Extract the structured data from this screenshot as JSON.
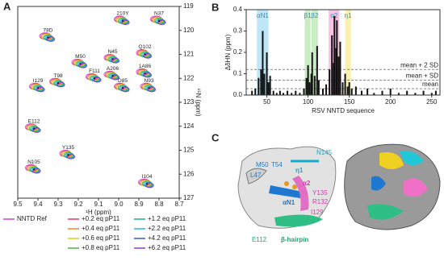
{
  "panel_labels": [
    "A",
    "B",
    "C"
  ],
  "chart_data": [
    {
      "type": "scatter",
      "x_label": "¹H (ppm)",
      "y_label": "¹⁵N (ppm)",
      "xlim": [
        9.5,
        8.7
      ],
      "ylim": [
        127,
        119
      ],
      "xticks": [
        {
          "value": 9.5,
          "label": "9.5"
        },
        {
          "value": 9.4,
          "label": "9.4"
        },
        {
          "value": 9.3,
          "label": "9.3"
        },
        {
          "value": 9.2,
          "label": "9.2"
        },
        {
          "value": 9.1,
          "label": "9.1"
        },
        {
          "value": 9.0,
          "label": "9.0"
        },
        {
          "value": 8.9,
          "label": "8.9"
        },
        {
          "value": 8.8,
          "label": "8.8"
        },
        {
          "value": 8.7,
          "label": "8.7"
        }
      ],
      "yticks": [
        119,
        120,
        121,
        122,
        123,
        124,
        125,
        126,
        127
      ],
      "series": [
        {
          "name": "NNTD Ref",
          "color": "#d63fd6"
        },
        {
          "name": "+0.2 eq pP11",
          "color": "#e8356a"
        },
        {
          "name": "+0.4 eq pP11",
          "color": "#f08a24"
        },
        {
          "name": "+0.6 eq pP11",
          "color": "#d9d21c"
        },
        {
          "name": "+0.8 eq pP11",
          "color": "#46b64a"
        },
        {
          "name": "+1.2 eq pP11",
          "color": "#1fae86"
        },
        {
          "name": "+2.2 eq pP11",
          "color": "#29b7d9"
        },
        {
          "name": "+4.2 eq pP11",
          "color": "#2d5fd0"
        },
        {
          "name": "+6.2 eq pP11",
          "color": "#8a3ad0"
        }
      ],
      "points": [
        {
          "label": "210Y",
          "x": 8.98,
          "y": 119.6
        },
        {
          "label": "N37",
          "x": 8.8,
          "y": 119.6
        },
        {
          "label": "78D",
          "x": 9.35,
          "y": 120.3
        },
        {
          "label": "N45",
          "x": 9.03,
          "y": 121.2
        },
        {
          "label": "Q102",
          "x": 8.87,
          "y": 121.0
        },
        {
          "label": "M50",
          "x": 9.19,
          "y": 121.4
        },
        {
          "label": "A206",
          "x": 9.03,
          "y": 121.9
        },
        {
          "label": "1A86",
          "x": 8.87,
          "y": 121.8
        },
        {
          "label": "I129",
          "x": 9.4,
          "y": 122.4
        },
        {
          "label": "T98",
          "x": 9.3,
          "y": 122.2
        },
        {
          "label": "F111",
          "x": 9.12,
          "y": 122.0
        },
        {
          "label": "D85",
          "x": 8.98,
          "y": 122.4
        },
        {
          "label": "N93",
          "x": 8.85,
          "y": 122.4
        },
        {
          "label": "E112",
          "x": 9.42,
          "y": 124.1
        },
        {
          "label": "Y135",
          "x": 9.25,
          "y": 125.2
        },
        {
          "label": "N105",
          "x": 9.42,
          "y": 125.8
        },
        {
          "label": "I104",
          "x": 8.86,
          "y": 126.4
        }
      ]
    },
    {
      "type": "bar",
      "x_label": "RSV NNTD sequence",
      "y_label": "ΔδHN (ppm)",
      "xlim": [
        25,
        260
      ],
      "ylim": [
        0,
        0.4
      ],
      "xticks": [
        50,
        100,
        150,
        200,
        250
      ],
      "yticks": [
        {
          "value": 0,
          "label": "0.0"
        },
        {
          "value": 0.1,
          "label": "0.1"
        },
        {
          "value": 0.2,
          "label": "0.2"
        },
        {
          "value": 0.3,
          "label": "0.3"
        },
        {
          "value": 0.4,
          "label": "0.4"
        }
      ],
      "color": "#111111",
      "x": [
        32,
        36,
        40,
        43,
        45,
        47,
        50,
        52,
        54,
        58,
        62,
        66,
        70,
        75,
        80,
        85,
        90,
        95,
        98,
        100,
        102,
        104,
        105,
        108,
        111,
        113,
        118,
        122,
        126,
        129,
        131,
        132,
        134,
        135,
        137,
        139,
        142,
        145,
        148,
        150,
        153,
        158,
        165,
        172,
        180,
        190,
        200,
        210,
        220,
        230,
        240,
        250,
        255
      ],
      "values": [
        0.02,
        0.03,
        0.08,
        0.12,
        0.3,
        0.1,
        0.2,
        0.06,
        0.09,
        0.02,
        0.01,
        0.02,
        0.01,
        0.02,
        0.01,
        0.02,
        0.01,
        0.03,
        0.08,
        0.14,
        0.06,
        0.1,
        0.2,
        0.09,
        0.23,
        0.07,
        0.03,
        0.05,
        0.12,
        0.28,
        0.15,
        0.37,
        0.22,
        0.35,
        0.18,
        0.25,
        0.06,
        0.1,
        0.04,
        0.06,
        0.03,
        0.04,
        0.02,
        0.03,
        0.01,
        0.02,
        0.03,
        0.01,
        0.02,
        0.01,
        0.02,
        0.01,
        0.02
      ],
      "regions": [
        {
          "label": "αN1",
          "start": 38,
          "end": 52,
          "color": "#bfe6f7"
        },
        {
          "label": "β1",
          "start": 96,
          "end": 103,
          "color": "#c9ecc4"
        },
        {
          "label": "β2",
          "start": 104,
          "end": 112,
          "color": "#c9ecc4"
        },
        {
          "label": "α2",
          "start": 125,
          "end": 138,
          "color": "#f6c3e4"
        },
        {
          "label": "η1",
          "start": 145,
          "end": 152,
          "color": "#f8f1b0"
        }
      ],
      "hlines": [
        {
          "label": "mean + 2 SD",
          "value": 0.12
        },
        {
          "label": "mean + SD",
          "value": 0.07
        },
        {
          "label": "mean",
          "value": 0.03
        }
      ]
    }
  ],
  "panel_c": {
    "labels": [
      "M50",
      "T54",
      "L47",
      "η1",
      "N145",
      "α2",
      "Y135",
      "R132",
      "αN1",
      "I129",
      "E112",
      "β-hairpin"
    ]
  }
}
